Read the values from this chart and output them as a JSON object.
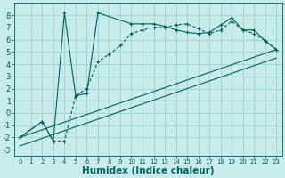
{
  "xlabel": "Humidex (Indice chaleur)",
  "bg_color": "#c8ece8",
  "line_color": "#006060",
  "grid_color": "#9dd4ce",
  "xlim": [
    -0.5,
    23.5
  ],
  "ylim": [
    -3.5,
    9.0
  ],
  "yticks": [
    -3,
    -2,
    -1,
    0,
    1,
    2,
    3,
    4,
    5,
    6,
    7,
    8
  ],
  "xticks": [
    0,
    1,
    2,
    3,
    4,
    5,
    6,
    7,
    8,
    9,
    10,
    11,
    12,
    13,
    14,
    15,
    16,
    17,
    18,
    19,
    20,
    21,
    22,
    23
  ],
  "curve1_x": [
    0,
    2,
    3,
    4,
    5,
    6,
    7,
    10,
    11,
    12,
    13,
    14,
    15,
    16,
    17,
    18,
    19,
    20,
    21,
    22,
    23
  ],
  "curve1_y": [
    -2.0,
    -0.7,
    -2.3,
    8.2,
    1.4,
    1.6,
    8.2,
    7.3,
    7.3,
    7.3,
    7.1,
    6.8,
    6.6,
    6.5,
    6.6,
    7.2,
    7.8,
    6.8,
    6.8,
    5.9,
    5.2
  ],
  "curve2_x": [
    0,
    2,
    3,
    4,
    5,
    6,
    7,
    8,
    9,
    10,
    11,
    12,
    13,
    14,
    15,
    16,
    17,
    18,
    19,
    20,
    21,
    22,
    23
  ],
  "curve2_y": [
    -2.0,
    -0.7,
    -2.3,
    -2.3,
    1.4,
    2.0,
    4.2,
    4.8,
    5.5,
    6.5,
    6.8,
    7.0,
    7.0,
    7.2,
    7.3,
    6.9,
    6.5,
    6.8,
    7.5,
    6.8,
    6.5,
    5.9,
    5.2
  ],
  "line1_x": [
    0,
    23
  ],
  "line1_y": [
    -2.0,
    5.2
  ],
  "line2_x": [
    0,
    23
  ],
  "line2_y": [
    -2.7,
    4.5
  ],
  "tick_fontsize": 6,
  "label_fontsize": 7.5
}
